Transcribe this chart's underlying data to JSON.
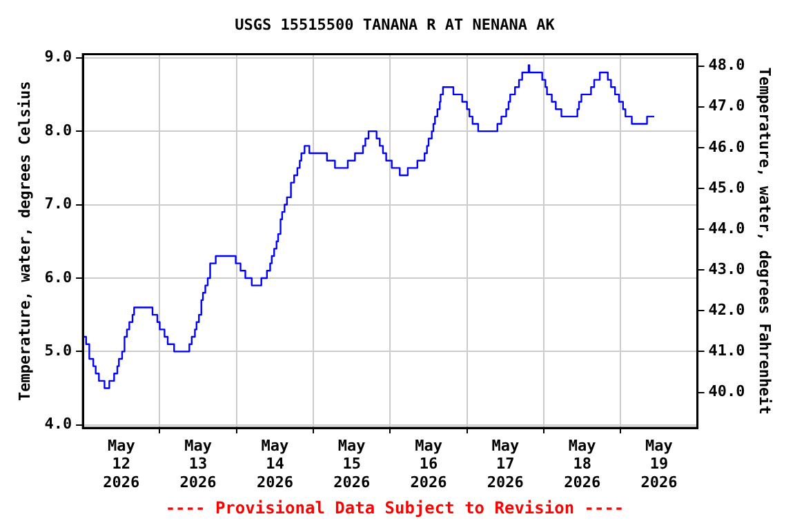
{
  "chart_data": {
    "type": "step",
    "title": "USGS 15515500 TANANA R AT NENANA AK",
    "ylabel": "Temperature, water, degrees Celsius",
    "y2label": "Temperature, water, degrees Fahrenheit",
    "annotations": [
      "---- Provisional Data Subject to Revision ----"
    ],
    "x": [
      "2026-05-12T00:00",
      "2026-05-12T01:00",
      "2026-05-12T02:00",
      "2026-05-12T03:15",
      "2026-05-12T04:00",
      "2026-05-12T05:00",
      "2026-05-12T06:45",
      "2026-05-12T08:15",
      "2026-05-12T09:45",
      "2026-05-12T10:45",
      "2026-05-12T11:15",
      "2026-05-12T12:15",
      "2026-05-12T13:00",
      "2026-05-12T13:45",
      "2026-05-12T14:30",
      "2026-05-12T15:30",
      "2026-05-12T16:00",
      "2026-05-12T21:45",
      "2026-05-12T23:15",
      "2026-05-13T00:00",
      "2026-05-13T01:30",
      "2026-05-13T02:30",
      "2026-05-13T04:30",
      "2026-05-13T09:15",
      "2026-05-13T10:00",
      "2026-05-13T11:00",
      "2026-05-13T11:30",
      "2026-05-13T12:15",
      "2026-05-13T13:00",
      "2026-05-13T13:30",
      "2026-05-13T14:15",
      "2026-05-13T15:00",
      "2026-05-13T15:45",
      "2026-05-13T17:30",
      "2026-05-13T23:45",
      "2026-05-14T01:15",
      "2026-05-14T02:45",
      "2026-05-14T04:45",
      "2026-05-14T07:45",
      "2026-05-14T09:30",
      "2026-05-14T10:30",
      "2026-05-14T11:00",
      "2026-05-14T11:45",
      "2026-05-14T12:30",
      "2026-05-14T13:00",
      "2026-05-14T13:45",
      "2026-05-14T14:15",
      "2026-05-14T15:00",
      "2026-05-14T15:45",
      "2026-05-14T17:00",
      "2026-05-14T18:00",
      "2026-05-14T19:00",
      "2026-05-14T19:45",
      "2026-05-14T20:15",
      "2026-05-14T21:15",
      "2026-05-14T22:45",
      "2026-05-15T04:15",
      "2026-05-15T06:45",
      "2026-05-15T10:45",
      "2026-05-15T13:00",
      "2026-05-15T15:30",
      "2026-05-15T16:15",
      "2026-05-15T17:15",
      "2026-05-15T19:45",
      "2026-05-15T20:45",
      "2026-05-15T21:45",
      "2026-05-15T22:45",
      "2026-05-16T00:30",
      "2026-05-16T03:00",
      "2026-05-16T05:30",
      "2026-05-16T08:30",
      "2026-05-16T10:45",
      "2026-05-16T11:30",
      "2026-05-16T12:00",
      "2026-05-16T13:00",
      "2026-05-16T13:30",
      "2026-05-16T14:00",
      "2026-05-16T14:45",
      "2026-05-16T15:30",
      "2026-05-16T15:45",
      "2026-05-16T16:30",
      "2026-05-16T19:45",
      "2026-05-16T22:30",
      "2026-05-17T00:00",
      "2026-05-17T00:45",
      "2026-05-17T01:45",
      "2026-05-17T03:30",
      "2026-05-17T09:30",
      "2026-05-17T10:45",
      "2026-05-17T12:15",
      "2026-05-17T13:00",
      "2026-05-17T13:30",
      "2026-05-17T15:00",
      "2026-05-17T16:15",
      "2026-05-17T17:15",
      "2026-05-17T19:15",
      "2026-05-17T19:30",
      "2026-05-17T23:30",
      "2026-05-18T00:30",
      "2026-05-18T01:00",
      "2026-05-18T02:30",
      "2026-05-18T03:45",
      "2026-05-18T05:30",
      "2026-05-18T10:30",
      "2026-05-18T11:00",
      "2026-05-18T11:45",
      "2026-05-18T14:45",
      "2026-05-18T15:45",
      "2026-05-18T17:30",
      "2026-05-18T20:00",
      "2026-05-18T21:00",
      "2026-05-18T22:15",
      "2026-05-18T23:30",
      "2026-05-19T00:45",
      "2026-05-19T01:30",
      "2026-05-19T03:30",
      "2026-05-19T08:15",
      "2026-05-19T10:30"
    ],
    "series": [
      {
        "color": "#0000ff",
        "values": [
          5.2,
          5.1,
          4.9,
          4.8,
          4.7,
          4.6,
          4.5,
          4.6,
          4.7,
          4.8,
          4.9,
          5.0,
          5.2,
          5.3,
          5.4,
          5.5,
          5.6,
          5.5,
          5.4,
          5.3,
          5.2,
          5.1,
          5.0,
          5.1,
          5.2,
          5.3,
          5.4,
          5.5,
          5.7,
          5.8,
          5.9,
          6.0,
          6.2,
          6.3,
          6.2,
          6.1,
          6.0,
          5.9,
          6.0,
          6.1,
          6.2,
          6.3,
          6.4,
          6.5,
          6.6,
          6.8,
          6.9,
          7.0,
          7.1,
          7.3,
          7.4,
          7.5,
          7.6,
          7.7,
          7.8,
          7.7,
          7.6,
          7.5,
          7.6,
          7.7,
          7.8,
          7.9,
          8.0,
          7.9,
          7.8,
          7.7,
          7.6,
          7.5,
          7.4,
          7.5,
          7.6,
          7.7,
          7.8,
          7.9,
          8.0,
          8.1,
          8.2,
          8.3,
          8.4,
          8.5,
          8.6,
          8.5,
          8.4,
          8.3,
          8.2,
          8.1,
          8.0,
          8.1,
          8.2,
          8.3,
          8.4,
          8.5,
          8.6,
          8.7,
          8.8,
          8.9,
          8.8,
          8.7,
          8.6,
          8.5,
          8.4,
          8.3,
          8.2,
          8.3,
          8.4,
          8.5,
          8.6,
          8.7,
          8.8,
          8.7,
          8.6,
          8.5,
          8.4,
          8.3,
          8.2,
          8.1,
          8.2,
          8.2
        ]
      }
    ],
    "xlim": [
      "2026-05-12",
      "2026-05-20"
    ],
    "xticks": [
      {
        "value": "2026-05-12T12:00",
        "label": "May 12 2026"
      },
      {
        "value": "2026-05-13T00:00",
        "label": null
      },
      {
        "value": "2026-05-13T12:00",
        "label": "May 13 2026"
      },
      {
        "value": "2026-05-14T00:00",
        "label": null
      },
      {
        "value": "2026-05-14T12:00",
        "label": "May 14 2026"
      },
      {
        "value": "2026-05-15T00:00",
        "label": null
      },
      {
        "value": "2026-05-15T12:00",
        "label": "May 15 2026"
      },
      {
        "value": "2026-05-16T00:00",
        "label": null
      },
      {
        "value": "2026-05-16T12:00",
        "label": "May 16 2026"
      },
      {
        "value": "2026-05-17T00:00",
        "label": null
      },
      {
        "value": "2026-05-17T12:00",
        "label": "May 17 2026"
      },
      {
        "value": "2026-05-18T00:00",
        "label": null
      },
      {
        "value": "2026-05-18T12:00",
        "label": "May 18 2026"
      },
      {
        "value": "2026-05-19T00:00",
        "label": null
      },
      {
        "value": "2026-05-19T12:00",
        "label": "May 19 2026"
      }
    ],
    "ylim": [
      3.96,
      9.05
    ],
    "yticks": [
      {
        "value": 4,
        "label": "4.0"
      },
      {
        "value": 5,
        "label": "5.0"
      },
      {
        "value": 6,
        "label": "6.0"
      },
      {
        "value": 7,
        "label": "7.0"
      },
      {
        "value": 8,
        "label": "8.0"
      },
      {
        "value": 9,
        "label": "9.0"
      }
    ],
    "y2lim": [
      39.13,
      48.29
    ],
    "y2ticks": [
      {
        "value": 40,
        "label": "40.0"
      },
      {
        "value": 41,
        "label": "41.0"
      },
      {
        "value": 42,
        "label": "42.0"
      },
      {
        "value": 43,
        "label": "43.0"
      },
      {
        "value": 44,
        "label": "44.0"
      },
      {
        "value": 45,
        "label": "45.0"
      },
      {
        "value": 46,
        "label": "46.0"
      },
      {
        "value": 47,
        "label": "47.0"
      },
      {
        "value": 48,
        "label": "48.0"
      }
    ],
    "grid": true,
    "legend": false,
    "marker": "none",
    "line_style": "solid"
  }
}
